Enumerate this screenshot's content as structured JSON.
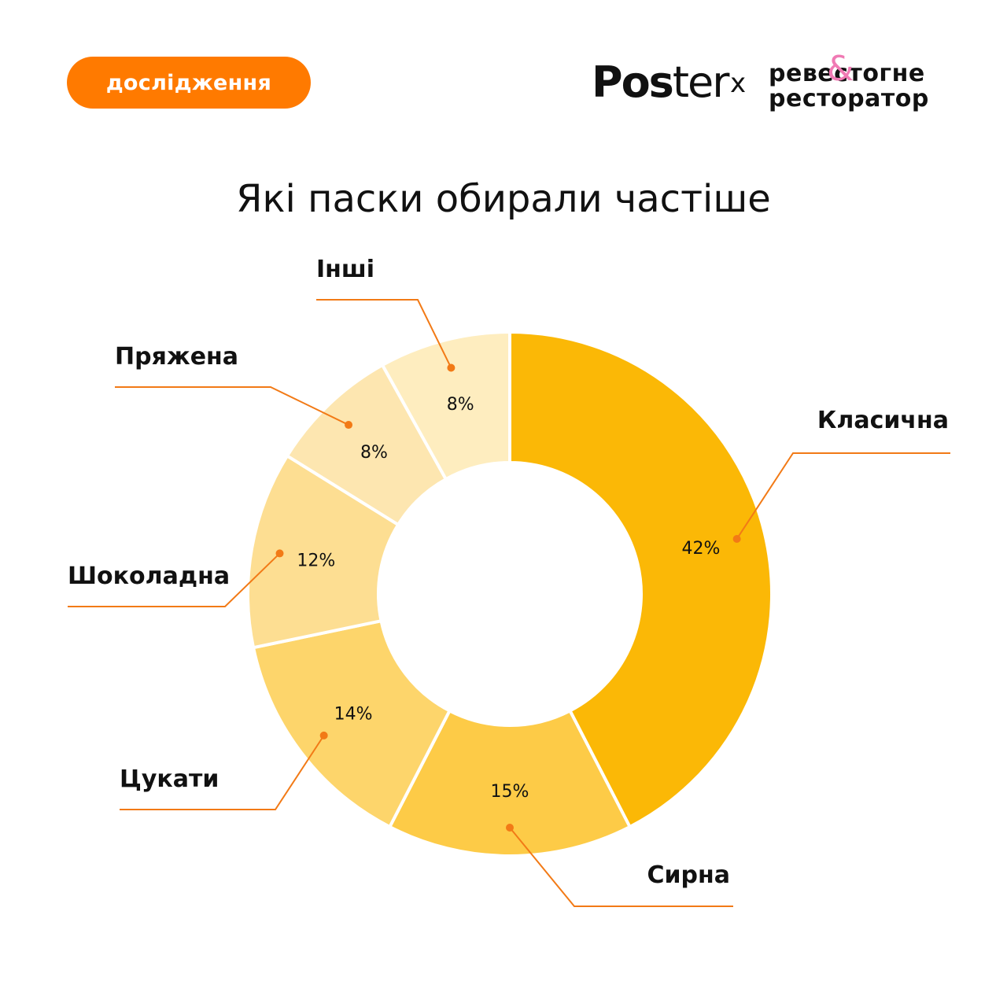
{
  "header": {
    "badge_label": "дослідження",
    "logo_poster_a": "Pos",
    "logo_poster_b": "ter",
    "logo_x": "x",
    "partner_line1": "ревестогне",
    "partner_line2": "ресторатор",
    "partner_amp": "&"
  },
  "chart_data": {
    "type": "pie",
    "donut": true,
    "title": "Які паски обирали частіше",
    "slices": [
      {
        "label": "Класична",
        "value": 42,
        "value_label": "42%",
        "color": "#fbb806"
      },
      {
        "label": "Сирна",
        "value": 15,
        "value_label": "15%",
        "color": "#fdcb47"
      },
      {
        "label": "Цукати",
        "value": 14,
        "value_label": "14%",
        "color": "#fdd56b"
      },
      {
        "label": "Шоколадна",
        "value": 12,
        "value_label": "12%",
        "color": "#fdde92"
      },
      {
        "label": "Пряжена",
        "value": 8,
        "value_label": "8%",
        "color": "#fde6b0"
      },
      {
        "label": "Інші",
        "value": 8,
        "value_label": "8%",
        "color": "#feedbf"
      }
    ],
    "leader_color": "#f27a16"
  }
}
